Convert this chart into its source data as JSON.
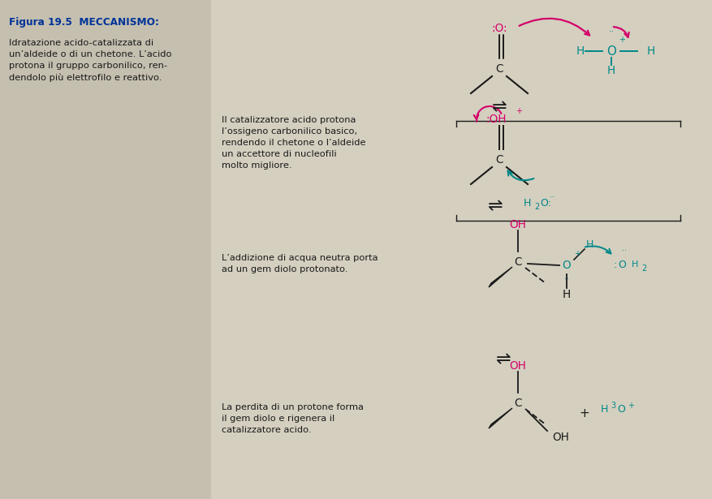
{
  "bg_color": "#d4cfbf",
  "left_panel_bg": "#c4bfaf",
  "pink": "#d4006a",
  "teal": "#008888",
  "dark": "#1a1a1a",
  "title_color": "#003399",
  "fig_label": "Figura 19.5  MECCANISMO:",
  "left_text": "Idratazione acido-catalizzata di\nun’aldeide o di un chetone. L’acido\nprotona il gruppo carbonilico, ren-\ndendolo più elettrofilo e reattivo.",
  "text1": "Il catalizzatore acido protona\nl’ossigeno carbonilico basico,\nrendendo il chetone o l’aldeide\nun accettore di nucleofili\nmolto migliore.",
  "text2": "L’addizione di acqua neutra porta\nad un gem diolo protonato.",
  "text3": "La perdita di un protone forma\nil gem diolo e rigenera il\ncatalizzatore acido."
}
